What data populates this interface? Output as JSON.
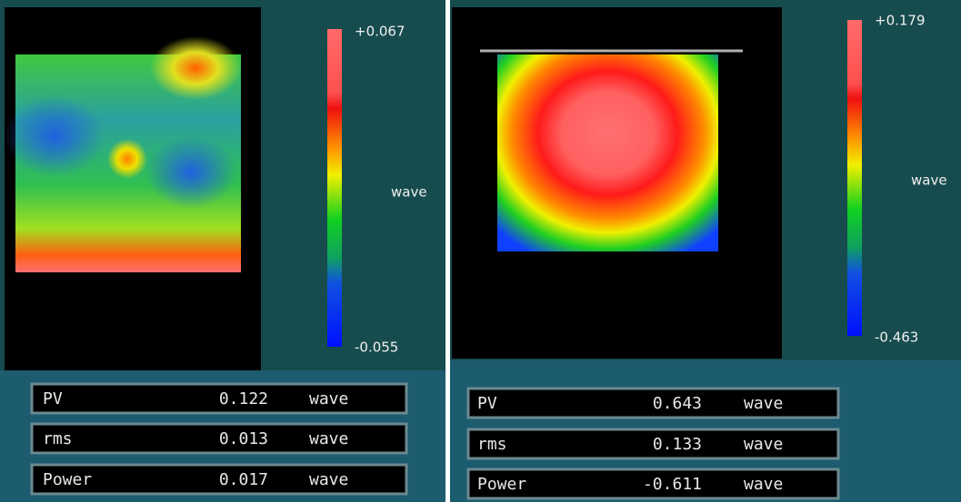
{
  "panels": [
    {
      "scale": {
        "max": "+0.067",
        "unit": "wave",
        "min": "-0.055"
      },
      "stats": [
        {
          "label": "PV",
          "value": "0.122",
          "unit": "wave"
        },
        {
          "label": "rms",
          "value": "0.013",
          "unit": "wave"
        },
        {
          "label": "Power",
          "value": "0.017",
          "unit": "wave"
        }
      ]
    },
    {
      "scale": {
        "max": "+0.179",
        "unit": "wave",
        "min": "-0.463"
      },
      "stats": [
        {
          "label": "PV",
          "value": "0.643",
          "unit": "wave"
        },
        {
          "label": "rms",
          "value": "0.133",
          "unit": "wave"
        },
        {
          "label": "Power",
          "value": "-0.611",
          "unit": "wave"
        }
      ]
    }
  ]
}
